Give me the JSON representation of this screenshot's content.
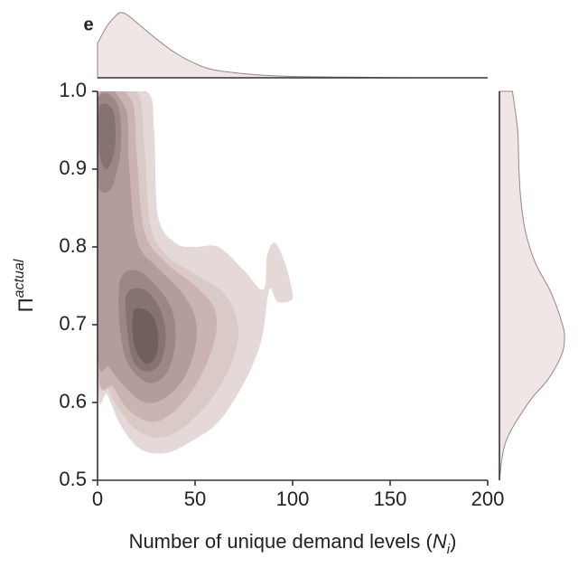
{
  "chart_data": {
    "type": "kde",
    "panel_label": "e",
    "xlabel": [
      "Number of unique demand levels (",
      "N",
      "i",
      ")"
    ],
    "ylabel": [
      "Π",
      "actual"
    ],
    "xlim": [
      0,
      200
    ],
    "xticks": [
      0,
      50,
      100,
      150,
      200
    ],
    "ylim": [
      0.5,
      1.0
    ],
    "yticks": [
      0.5,
      0.6,
      0.7,
      0.8,
      0.9,
      {
        "value": 1.0,
        "label": "1.0"
      }
    ],
    "contours": [
      {
        "color": "#e4d9d7",
        "x": [
          0,
          25,
          29,
          31,
          40,
          50,
          62,
          75,
          85,
          87,
          91,
          96,
          100,
          98,
          92,
          88,
          84,
          75,
          62,
          48,
          35,
          22,
          12,
          5,
          0
        ],
        "y": [
          1.0,
          1.0,
          0.95,
          0.84,
          0.805,
          0.8,
          0.8,
          0.77,
          0.745,
          0.79,
          0.805,
          0.78,
          0.74,
          0.73,
          0.73,
          0.745,
          0.68,
          0.625,
          0.575,
          0.55,
          0.535,
          0.54,
          0.57,
          0.61,
          0.63
        ]
      },
      {
        "color": "#d9c9c7",
        "x": [
          0,
          20,
          24,
          27,
          35,
          50,
          65,
          72,
          70,
          60,
          45,
          32,
          20,
          10,
          3,
          0
        ],
        "y": [
          1.0,
          1.0,
          0.93,
          0.83,
          0.79,
          0.765,
          0.74,
          0.7,
          0.66,
          0.61,
          0.57,
          0.555,
          0.565,
          0.595,
          0.63,
          0.64
        ]
      },
      {
        "color": "#cab3b1",
        "x": [
          0,
          17,
          20,
          24,
          35,
          50,
          60,
          60,
          52,
          40,
          28,
          16,
          8,
          0
        ],
        "y": [
          0.99,
          0.99,
          0.92,
          0.82,
          0.78,
          0.75,
          0.72,
          0.68,
          0.63,
          0.59,
          0.575,
          0.59,
          0.62,
          0.65
        ]
      },
      {
        "color": "#b49c9a",
        "x": [
          0,
          14,
          16,
          20,
          30,
          42,
          50,
          50,
          44,
          34,
          24,
          14,
          6,
          0
        ],
        "y": [
          0.98,
          0.98,
          0.91,
          0.81,
          0.775,
          0.745,
          0.71,
          0.67,
          0.63,
          0.605,
          0.6,
          0.62,
          0.645,
          0.67
        ]
      },
      {
        "color": "#9d8784",
        "x": [
          0,
          10,
          12,
          8,
          3,
          0
        ],
        "y": [
          0.99,
          0.985,
          0.93,
          0.88,
          0.87,
          0.89
        ]
      },
      {
        "color": "#9d8784",
        "x": [
          12,
          20,
          30,
          38,
          40,
          36,
          28,
          20,
          14,
          11
        ],
        "y": [
          0.76,
          0.77,
          0.75,
          0.72,
          0.68,
          0.64,
          0.625,
          0.635,
          0.66,
          0.71
        ]
      },
      {
        "color": "#867371",
        "x": [
          1,
          8,
          9,
          5,
          1
        ],
        "y": [
          0.98,
          0.975,
          0.93,
          0.9,
          0.92
        ]
      },
      {
        "color": "#867371",
        "x": [
          15,
          24,
          32,
          35,
          32,
          25,
          18,
          15
        ],
        "y": [
          0.74,
          0.745,
          0.72,
          0.685,
          0.65,
          0.64,
          0.655,
          0.7
        ]
      },
      {
        "color": "#6f605e",
        "x": [
          19,
          27,
          31,
          30,
          25,
          20,
          18
        ],
        "y": [
          0.72,
          0.715,
          0.69,
          0.66,
          0.65,
          0.665,
          0.69
        ]
      }
    ],
    "x_marginal": {
      "color": "#efe6e5",
      "x": [
        0,
        5,
        10,
        12,
        15,
        20,
        30,
        40,
        50,
        60,
        80,
        100,
        130,
        160,
        200
      ],
      "density": [
        0.53,
        0.8,
        0.97,
        1.0,
        0.97,
        0.85,
        0.6,
        0.38,
        0.22,
        0.12,
        0.05,
        0.02,
        0.01,
        0,
        0
      ]
    },
    "y_marginal": {
      "color": "#efe6e5",
      "y": [
        0.5,
        0.55,
        0.6,
        0.63,
        0.66,
        0.68,
        0.7,
        0.74,
        0.78,
        0.82,
        0.86,
        0.9,
        0.95,
        1.0
      ],
      "density": [
        0,
        0.1,
        0.45,
        0.75,
        0.95,
        1.0,
        0.97,
        0.8,
        0.55,
        0.4,
        0.33,
        0.3,
        0.28,
        0.2
      ]
    }
  }
}
